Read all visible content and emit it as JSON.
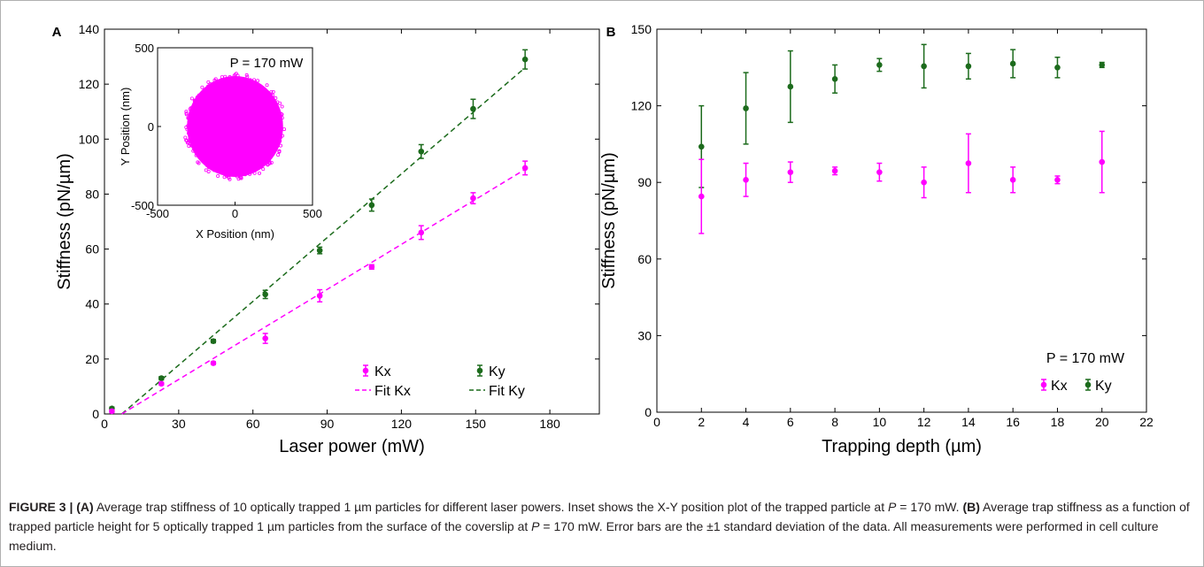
{
  "panels": {
    "a_label": "A",
    "b_label": "B"
  },
  "caption": {
    "label": "FIGURE 3 | ",
    "a_tag": "(A)",
    "a_text": " Average trap stiffness of 10 optically trapped 1 µm particles for different laser powers. Inset shows the X-Y position plot of the trapped particle at",
    "p_var": "P",
    "p_value": " = 170 mW. ",
    "b_tag": "(B)",
    "b_text": " Average trap stiffness as a function of trapped particle height for 5 optically trapped 1 µm particles from the surface of the coverslip at",
    "p_var2": "P",
    "p_value2": " = 170 mW. Error bars are the ±1 standard deviation of the data. All measurements were performed in cell culture medium."
  },
  "colors": {
    "kx": "#ff00ff",
    "ky": "#1c6b1c",
    "axis": "#000000"
  },
  "chart_data": [
    {
      "type": "scatter",
      "panel": "A",
      "xlabel": "Laser power (mW)",
      "ylabel": "Stiffness (pN/µm)",
      "xlim": [
        0,
        200
      ],
      "ylim": [
        0,
        140
      ],
      "xticks": [
        0,
        30,
        60,
        90,
        120,
        150,
        180
      ],
      "yticks": [
        0,
        20,
        40,
        60,
        80,
        100,
        120,
        140
      ],
      "x": [
        3,
        23,
        44,
        65,
        87,
        108,
        128,
        149,
        170
      ],
      "series": [
        {
          "name": "Ky",
          "values": [
            2,
            13,
            26.5,
            43.5,
            59.5,
            76,
            95.5,
            111,
            129
          ],
          "errors": [
            0.5,
            0.6,
            0.6,
            1.5,
            1.2,
            2.2,
            2.5,
            3.5,
            3.5
          ]
        },
        {
          "name": "Kx",
          "values": [
            1,
            11,
            18.5,
            27.5,
            43,
            53.5,
            66,
            78.5,
            89.5
          ],
          "errors": [
            0.5,
            0.5,
            0.5,
            1.8,
            2.2,
            0.8,
            2.5,
            2.0,
            2.5
          ]
        }
      ],
      "fits": [
        {
          "name": "Fit Ky",
          "x": [
            7,
            170
          ],
          "y": [
            0,
            126
          ]
        },
        {
          "name": "Fit Kx",
          "x": [
            7,
            170
          ],
          "y": [
            0,
            89
          ]
        }
      ],
      "legend": [
        "Kx",
        "Ky",
        "Fit Kx",
        "Fit Ky"
      ],
      "inset": {
        "type": "scatter",
        "annotation": "P = 170 mW",
        "xlabel": "X Position (nm)",
        "ylabel": "Y Position (nm)",
        "xlim": [
          -500,
          500
        ],
        "ylim": [
          -500,
          500
        ],
        "xticks": [
          -500,
          0,
          500
        ],
        "yticks": [
          -500,
          0,
          500
        ],
        "cloud_radius_x": 310,
        "cloud_radius_y": 320
      }
    },
    {
      "type": "scatter",
      "panel": "B",
      "xlabel": "Trapping depth (µm)",
      "ylabel": "Stiffness (pN/µm)",
      "xlim": [
        0,
        22
      ],
      "ylim": [
        0,
        150
      ],
      "xticks": [
        0,
        2,
        4,
        6,
        8,
        10,
        12,
        14,
        16,
        18,
        20,
        22
      ],
      "yticks": [
        0,
        30,
        60,
        90,
        120,
        150
      ],
      "x": [
        2,
        4,
        6,
        8,
        10,
        12,
        14,
        16,
        18,
        20
      ],
      "series": [
        {
          "name": "Ky",
          "values": [
            104,
            119,
            127.5,
            130.5,
            136,
            135.5,
            135.5,
            136.5,
            135,
            136
          ],
          "errors": [
            16,
            14,
            14,
            5.5,
            2.5,
            8.5,
            5,
            5.5,
            4,
            1
          ]
        },
        {
          "name": "Kx",
          "values": [
            84.5,
            91,
            94,
            94.5,
            94,
            90,
            97.5,
            91,
            91,
            98
          ],
          "errors": [
            14.5,
            6.5,
            4,
            1.5,
            3.5,
            6,
            11.5,
            5,
            1.5,
            12
          ]
        }
      ],
      "annotation": "P = 170 mW",
      "legend": [
        "Kx",
        "Ky"
      ]
    }
  ]
}
